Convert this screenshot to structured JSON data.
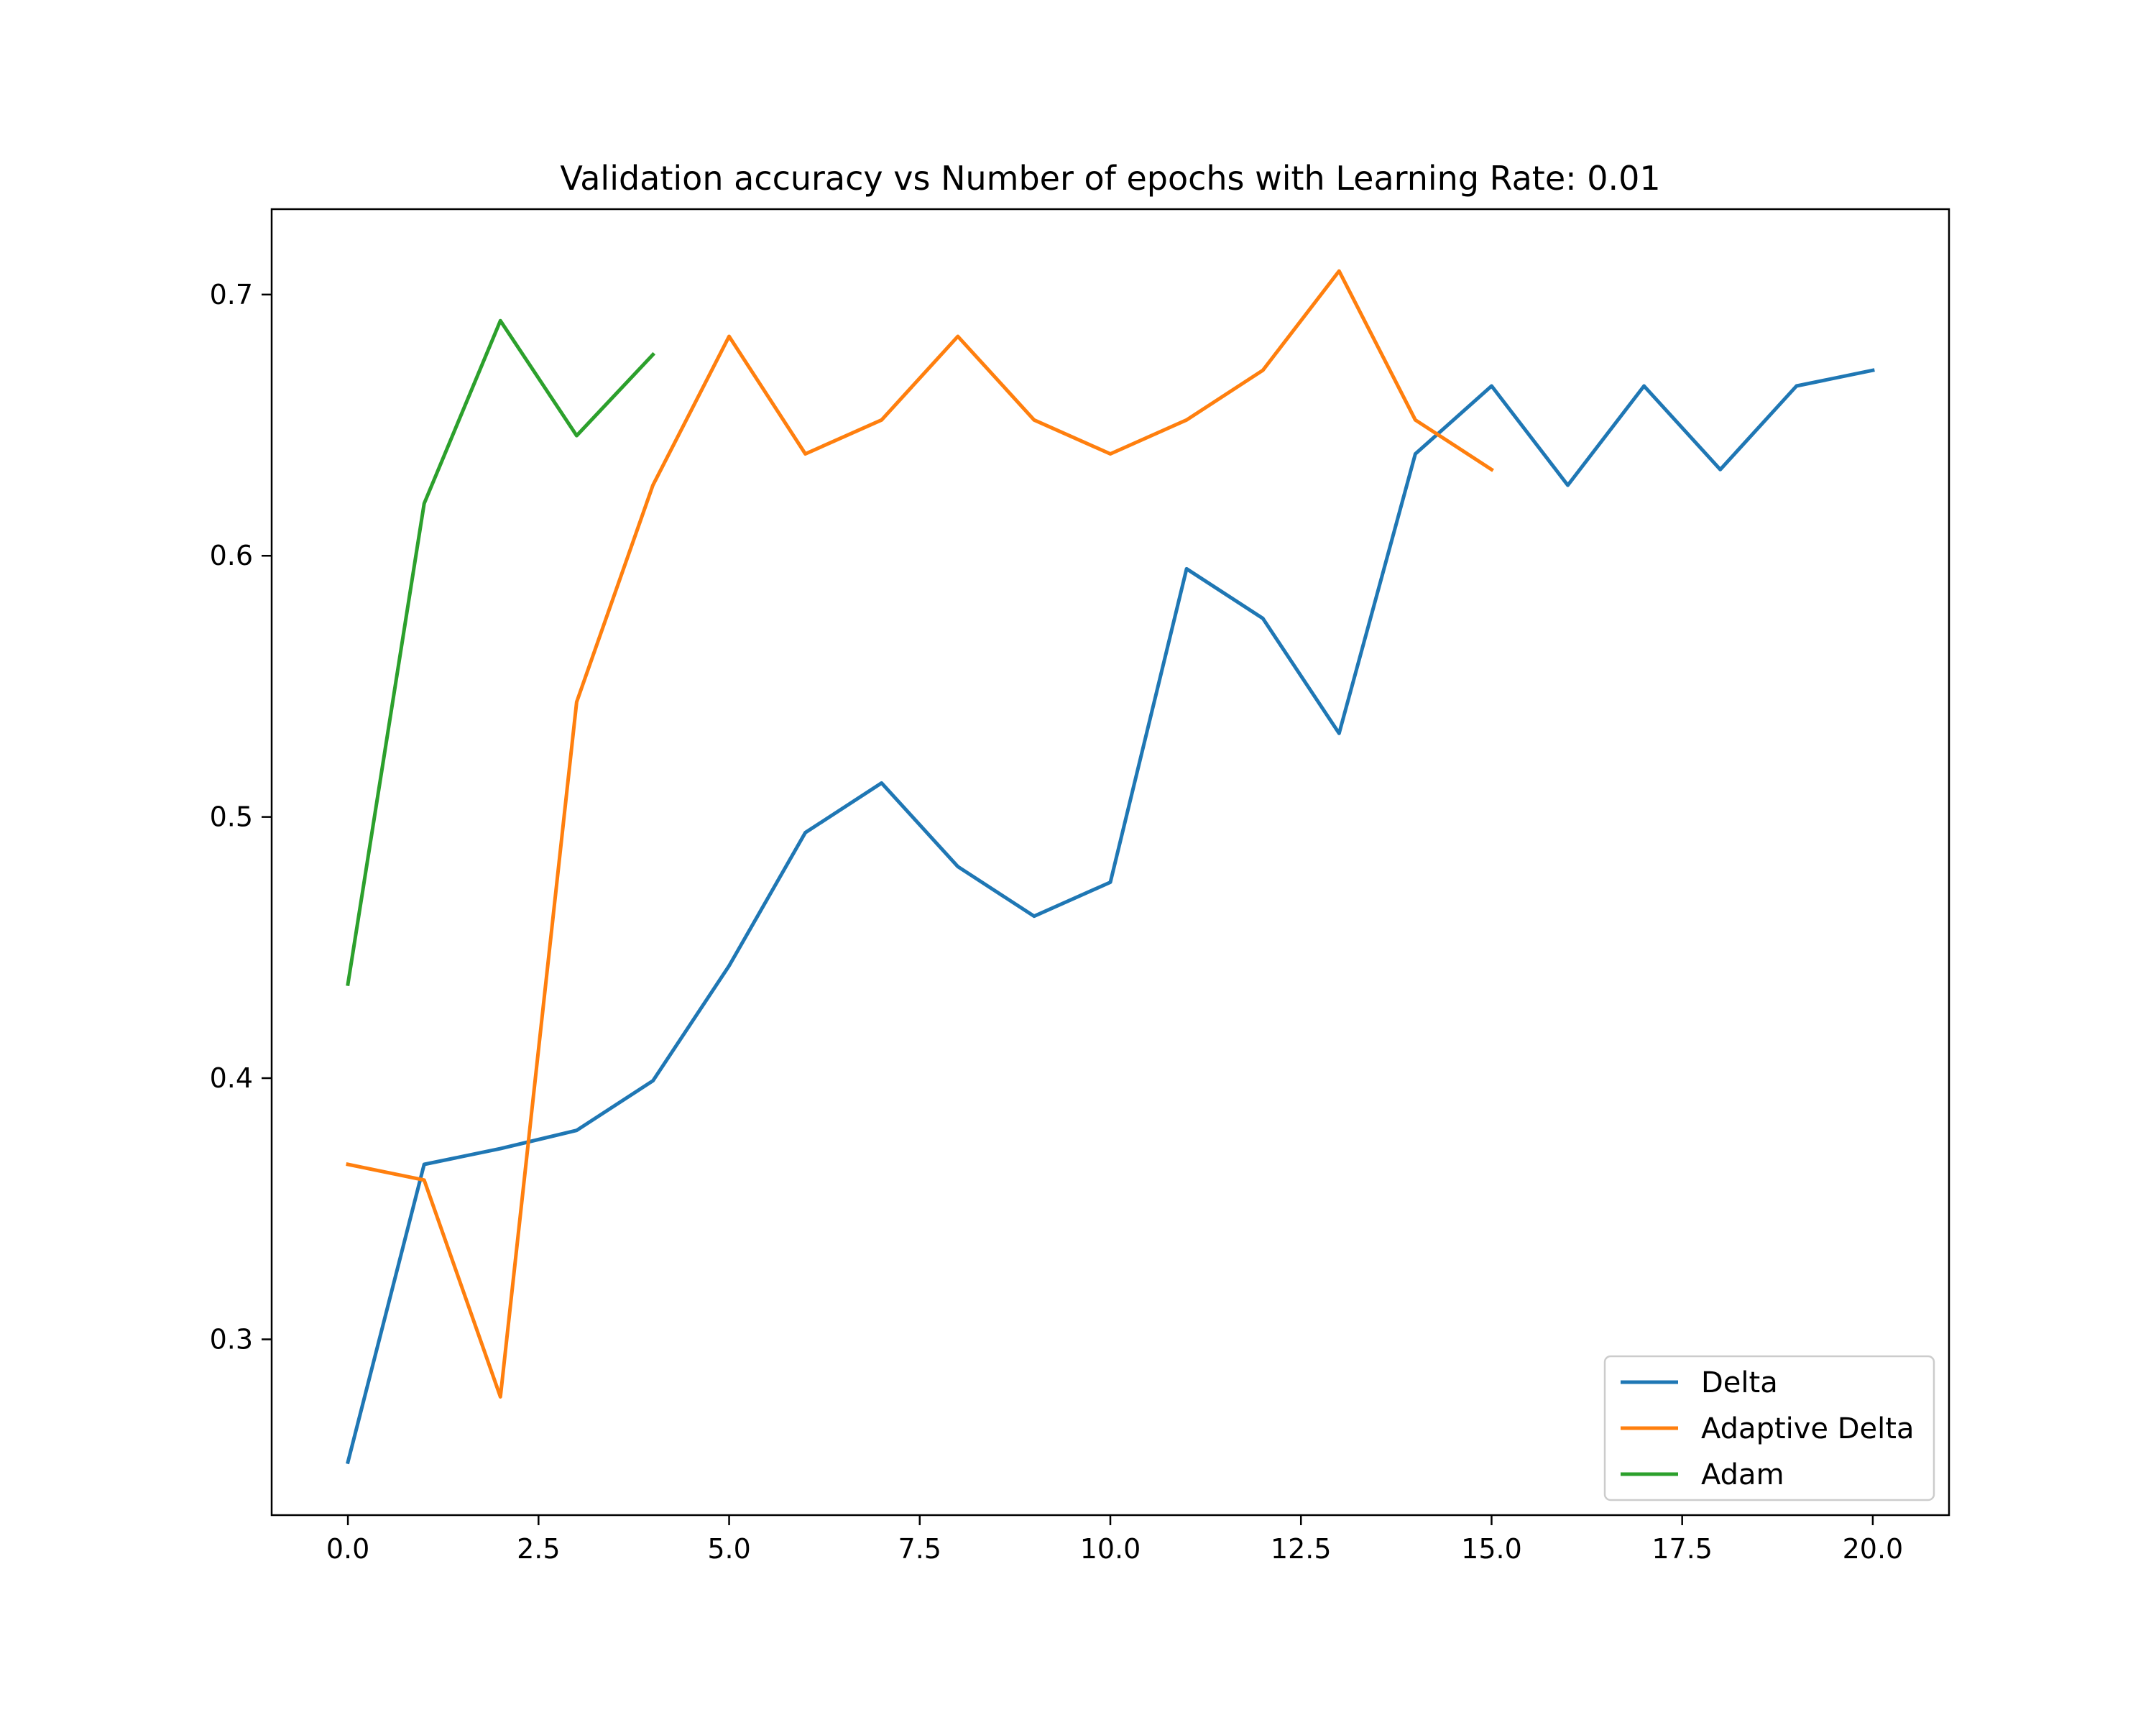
{
  "chart_data": {
    "type": "line",
    "title": "Validation accuracy vs Number of epochs with Learning Rate: 0.01",
    "xlabel": "",
    "ylabel": "",
    "xlim": [
      -1.0,
      21.0
    ],
    "ylim": [
      0.2327,
      0.7327
    ],
    "x_ticks": [
      0.0,
      2.5,
      5.0,
      7.5,
      10.0,
      12.5,
      15.0,
      17.5,
      20.0
    ],
    "x_tick_labels": [
      "0.0",
      "2.5",
      "5.0",
      "7.5",
      "10.0",
      "12.5",
      "15.0",
      "17.5",
      "20.0"
    ],
    "y_ticks": [
      0.3,
      0.4,
      0.5,
      0.6,
      0.7
    ],
    "y_tick_labels": [
      "0.3",
      "0.4",
      "0.5",
      "0.6",
      "0.7"
    ],
    "grid": false,
    "legend_position": "bottom-right",
    "series": [
      {
        "name": "Delta",
        "color": "#1f77b4",
        "x": [
          0,
          1,
          2,
          3,
          4,
          5,
          6,
          7,
          8,
          9,
          10,
          11,
          12,
          13,
          14,
          15,
          16,
          17,
          18,
          19,
          20
        ],
        "values": [
          0.253,
          0.367,
          0.373,
          0.38,
          0.399,
          0.443,
          0.494,
          0.513,
          0.481,
          0.462,
          0.475,
          0.595,
          0.576,
          0.532,
          0.639,
          0.665,
          0.627,
          0.665,
          0.633,
          0.665,
          0.671
        ]
      },
      {
        "name": "Adaptive Delta",
        "color": "#ff7f0e",
        "x": [
          0,
          1,
          2,
          3,
          4,
          5,
          6,
          7,
          8,
          9,
          10,
          11,
          12,
          13,
          14,
          15
        ],
        "values": [
          0.367,
          0.361,
          0.278,
          0.544,
          0.627,
          0.684,
          0.639,
          0.652,
          0.684,
          0.652,
          0.639,
          0.652,
          0.671,
          0.709,
          0.652,
          0.633
        ]
      },
      {
        "name": "Adam",
        "color": "#2ca02c",
        "x": [
          0,
          1,
          2,
          3,
          4
        ],
        "values": [
          0.436,
          0.62,
          0.69,
          0.646,
          0.677
        ]
      }
    ]
  }
}
